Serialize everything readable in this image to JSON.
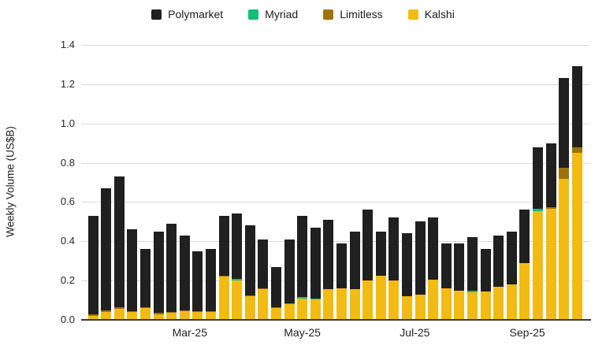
{
  "page": {
    "background": "#ffffff"
  },
  "legend": {
    "items": [
      {
        "label": "Polymarket",
        "color": "#202020"
      },
      {
        "label": "Myriad",
        "color": "#12bd77"
      },
      {
        "label": "Limitless",
        "color": "#9e7309"
      },
      {
        "label": "Kalshi",
        "color": "#f2bb13"
      }
    ]
  },
  "chart_data": {
    "type": "bar",
    "stacked": true,
    "title": "",
    "xlabel": "",
    "ylabel": "Weekly Volume (US$B)",
    "ylim": [
      0,
      1.4
    ],
    "yticks": [
      "0.0",
      "0.2",
      "0.4",
      "0.6",
      "0.8",
      "1.0",
      "1.2",
      "1.4"
    ],
    "grid": true,
    "legend_position": "top",
    "n_bars": 38,
    "x_axis_ticks": [
      {
        "label": "Mar-25",
        "bar_index": 8.4
      },
      {
        "label": "May-25",
        "bar_index": 17.0
      },
      {
        "label": "Jul-25",
        "bar_index": 25.6
      },
      {
        "label": "Sep-25",
        "bar_index": 34.2
      }
    ],
    "series": [
      {
        "name": "Kalshi",
        "color": "#f2bb13",
        "values": [
          0.02,
          0.04,
          0.055,
          0.04,
          0.06,
          0.03,
          0.035,
          0.045,
          0.04,
          0.04,
          0.22,
          0.2,
          0.12,
          0.155,
          0.06,
          0.08,
          0.11,
          0.105,
          0.155,
          0.16,
          0.155,
          0.2,
          0.225,
          0.2,
          0.12,
          0.13,
          0.205,
          0.16,
          0.15,
          0.14,
          0.145,
          0.17,
          0.18,
          0.29,
          0.555,
          0.565,
          0.72,
          0.85
        ]
      },
      {
        "name": "Limitless",
        "color": "#9e7309",
        "values": [
          0.01,
          0.01,
          0.01,
          0.005,
          0.005,
          0.005,
          0.005,
          0.005,
          0.003,
          0.003,
          0.005,
          0.0,
          0.005,
          0.005,
          0.003,
          0.003,
          0.0,
          0.0,
          0.0,
          0.0,
          0.0,
          0.0,
          0.0,
          0.0,
          0.0,
          0.0,
          0.0,
          0.0,
          0.0,
          0.0,
          0.0,
          0.0,
          0.0,
          0.0,
          0.0,
          0.01,
          0.055,
          0.03
        ]
      },
      {
        "name": "Myriad",
        "color": "#12bd77",
        "values": [
          0.0,
          0.0,
          0.0,
          0.0,
          0.0,
          0.0,
          0.0,
          0.0,
          0.0,
          0.0,
          0.0,
          0.01,
          0.0,
          0.0,
          0.0,
          0.0,
          0.008,
          0.005,
          0.0,
          0.0,
          0.0,
          0.0,
          0.0,
          0.0,
          0.0,
          0.0,
          0.0,
          0.0,
          0.0,
          0.01,
          0.0,
          0.0,
          0.0,
          0.0,
          0.01,
          0.0,
          0.0,
          0.0
        ]
      },
      {
        "name": "Polymarket",
        "color": "#202020",
        "values": [
          0.5,
          0.62,
          0.665,
          0.415,
          0.295,
          0.415,
          0.45,
          0.38,
          0.307,
          0.317,
          0.305,
          0.33,
          0.355,
          0.25,
          0.207,
          0.327,
          0.412,
          0.36,
          0.355,
          0.23,
          0.295,
          0.36,
          0.225,
          0.32,
          0.32,
          0.37,
          0.315,
          0.23,
          0.24,
          0.27,
          0.215,
          0.26,
          0.27,
          0.27,
          0.315,
          0.325,
          0.455,
          0.41
        ]
      }
    ],
    "totals": [
      0.53,
      0.67,
      0.73,
      0.46,
      0.36,
      0.45,
      0.49,
      0.43,
      0.35,
      0.36,
      0.53,
      0.54,
      0.48,
      0.41,
      0.27,
      0.41,
      0.53,
      0.47,
      0.51,
      0.39,
      0.45,
      0.56,
      0.45,
      0.52,
      0.44,
      0.5,
      0.52,
      0.39,
      0.39,
      0.42,
      0.36,
      0.43,
      0.45,
      0.56,
      0.88,
      0.9,
      1.23,
      1.29
    ]
  }
}
